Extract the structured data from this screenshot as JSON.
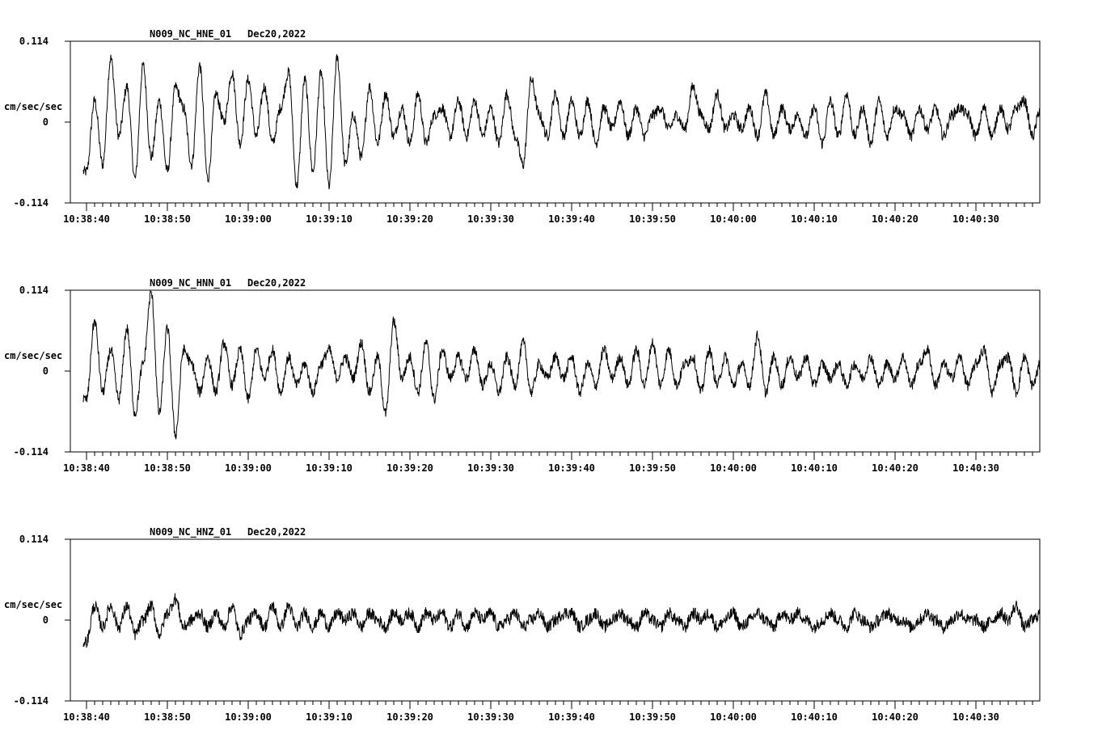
{
  "chart_data": [
    {
      "type": "line",
      "station_label": "N009_NC_HNE_01",
      "date_label": "Dec20,2022",
      "ylabel": "cm/sec/sec",
      "ylim": [
        -0.114,
        0.114
      ],
      "y_ticks": [
        "0.114",
        "0",
        "-0.114"
      ],
      "x_tick_labels": [
        "10:38:40",
        "10:38:50",
        "10:39:00",
        "10:39:10",
        "10:39:20",
        "10:39:30",
        "10:39:40",
        "10:39:50",
        "10:40:00",
        "10:40:10",
        "10:40:20",
        "10:40:30"
      ],
      "series": [
        {
          "color": "#000000",
          "t": [
            0,
            1,
            2,
            3,
            4,
            5,
            6,
            7,
            8,
            9,
            10,
            11,
            12,
            13,
            14,
            15,
            16,
            17,
            18,
            19,
            20,
            21,
            22,
            23,
            24,
            25,
            26,
            27,
            28,
            29,
            30,
            31,
            32,
            33,
            34,
            35,
            36,
            37,
            38,
            39,
            40,
            41,
            42,
            43,
            44,
            45,
            46,
            47,
            48,
            49,
            50,
            51,
            52,
            53,
            54,
            55,
            56,
            57,
            58,
            59,
            60,
            61,
            62,
            63,
            64,
            65,
            66,
            67,
            68,
            69,
            70,
            71,
            72,
            73,
            74,
            75,
            76,
            77,
            78,
            79,
            80,
            81,
            82,
            83,
            84,
            85,
            86,
            87,
            88,
            89,
            90,
            91,
            92,
            93,
            94,
            95,
            96,
            97,
            98,
            99,
            100,
            101,
            102,
            103,
            104,
            105,
            106,
            107,
            108,
            109,
            110,
            111,
            112,
            113,
            114,
            115,
            116,
            117,
            118,
            119
          ],
          "values": [
            -0.07,
            0.03,
            -0.06,
            0.09,
            -0.02,
            0.05,
            -0.08,
            0.08,
            -0.05,
            0.03,
            -0.07,
            0.05,
            0.02,
            -0.06,
            0.08,
            -0.08,
            0.04,
            0.0,
            0.07,
            -0.03,
            0.06,
            -0.02,
            0.05,
            -0.03,
            0.02,
            0.07,
            -0.09,
            0.06,
            -0.07,
            0.07,
            -0.09,
            0.09,
            -0.06,
            0.01,
            -0.05,
            0.05,
            -0.03,
            0.04,
            -0.02,
            0.02,
            -0.03,
            0.04,
            -0.03,
            0.01,
            0.02,
            -0.02,
            0.03,
            -0.02,
            0.03,
            -0.02,
            0.02,
            -0.03,
            0.04,
            -0.02,
            -0.06,
            0.06,
            0.01,
            -0.02,
            0.04,
            -0.02,
            0.03,
            -0.02,
            0.03,
            -0.03,
            0.02,
            -0.01,
            0.03,
            -0.02,
            0.02,
            -0.02,
            0.01,
            0.02,
            -0.01,
            0.01,
            -0.01,
            0.05,
            0.01,
            -0.01,
            0.04,
            -0.01,
            0.01,
            -0.01,
            0.02,
            -0.02,
            0.04,
            -0.02,
            0.02,
            -0.01,
            0.01,
            -0.02,
            0.02,
            -0.03,
            0.03,
            -0.02,
            0.04,
            -0.02,
            0.02,
            -0.03,
            0.03,
            -0.02,
            0.02,
            0.01,
            -0.02,
            0.02,
            -0.01,
            0.02,
            -0.02,
            0.01,
            0.02,
            0.01,
            -0.02,
            0.02,
            -0.02,
            0.02,
            -0.01,
            0.02,
            0.03,
            -0.02,
            0.02,
            -0.01
          ],
          "noise": 0.008
        }
      ],
      "t_start_label": "10:38:40"
    },
    {
      "type": "line",
      "station_label": "N009_NC_HNN_01",
      "date_label": "Dec20,2022",
      "ylabel": "cm/sec/sec",
      "ylim": [
        -0.114,
        0.114
      ],
      "y_ticks": [
        "0.114",
        "0",
        "-0.114"
      ],
      "x_tick_labels": [
        "10:38:40",
        "10:38:50",
        "10:39:00",
        "10:39:10",
        "10:39:20",
        "10:39:30",
        "10:39:40",
        "10:39:50",
        "10:40:00",
        "10:40:10",
        "10:40:20",
        "10:40:30"
      ],
      "series": [
        {
          "color": "#000000",
          "t": [
            0,
            1,
            2,
            3,
            4,
            5,
            6,
            7,
            8,
            9,
            10,
            11,
            12,
            13,
            14,
            15,
            16,
            17,
            18,
            19,
            20,
            21,
            22,
            23,
            24,
            25,
            26,
            27,
            28,
            29,
            30,
            31,
            32,
            33,
            34,
            35,
            36,
            37,
            38,
            39,
            40,
            41,
            42,
            43,
            44,
            45,
            46,
            47,
            48,
            49,
            50,
            51,
            52,
            53,
            54,
            55,
            56,
            57,
            58,
            59,
            60,
            61,
            62,
            63,
            64,
            65,
            66,
            67,
            68,
            69,
            70,
            71,
            72,
            73,
            74,
            75,
            76,
            77,
            78,
            79,
            80,
            81,
            82,
            83,
            84,
            85,
            86,
            87,
            88,
            89,
            90,
            91,
            92,
            93,
            94,
            95,
            96,
            97,
            98,
            99,
            100,
            101,
            102,
            103,
            104,
            105,
            106,
            107,
            108,
            109,
            110,
            111,
            112,
            113,
            114,
            115,
            116,
            117,
            118,
            119
          ],
          "values": [
            -0.04,
            0.07,
            -0.03,
            0.03,
            -0.04,
            0.06,
            -0.06,
            0.01,
            0.11,
            -0.06,
            0.06,
            -0.09,
            0.03,
            0.01,
            -0.03,
            0.02,
            -0.03,
            0.04,
            -0.02,
            0.03,
            -0.04,
            0.03,
            -0.01,
            0.03,
            -0.03,
            0.02,
            -0.02,
            0.01,
            -0.03,
            0.01,
            0.03,
            -0.01,
            0.02,
            -0.01,
            0.04,
            -0.03,
            0.02,
            -0.06,
            0.07,
            -0.01,
            0.02,
            -0.03,
            0.04,
            -0.04,
            0.03,
            -0.01,
            0.02,
            -0.01,
            0.03,
            -0.02,
            0.01,
            -0.03,
            0.02,
            -0.02,
            0.04,
            -0.03,
            0.01,
            -0.01,
            0.02,
            -0.01,
            0.02,
            -0.03,
            0.01,
            -0.02,
            0.03,
            -0.01,
            0.02,
            -0.02,
            0.03,
            -0.02,
            0.04,
            -0.02,
            0.03,
            -0.02,
            0.01,
            0.02,
            -0.03,
            0.03,
            -0.02,
            0.02,
            -0.02,
            0.01,
            -0.02,
            0.05,
            -0.03,
            0.02,
            -0.02,
            0.02,
            -0.01,
            0.02,
            -0.02,
            0.01,
            -0.01,
            0.01,
            -0.02,
            0.01,
            -0.01,
            0.02,
            -0.02,
            0.01,
            -0.01,
            0.02,
            -0.02,
            0.01,
            0.03,
            -0.02,
            0.01,
            -0.01,
            0.02,
            -0.02,
            0.01,
            0.03,
            -0.03,
            0.01,
            0.02,
            -0.03,
            0.02,
            -0.02,
            0.01,
            -0.02
          ],
          "noise": 0.008
        }
      ]
    },
    {
      "type": "line",
      "station_label": "N009_NC_HNZ_01",
      "date_label": "Dec20,2022",
      "ylabel": "cm/sec/sec",
      "ylim": [
        -0.114,
        0.114
      ],
      "y_ticks": [
        "0.114",
        "0",
        "-0.114"
      ],
      "x_tick_labels": [
        "10:38:40",
        "10:38:50",
        "10:39:00",
        "10:39:10",
        "10:39:20",
        "10:39:30",
        "10:39:40",
        "10:39:50",
        "10:40:00",
        "10:40:10",
        "10:40:20",
        "10:40:30"
      ],
      "series": [
        {
          "color": "#000000",
          "t": [
            0,
            1,
            2,
            3,
            4,
            5,
            6,
            7,
            8,
            9,
            10,
            11,
            12,
            13,
            14,
            15,
            16,
            17,
            18,
            19,
            20,
            21,
            22,
            23,
            24,
            25,
            26,
            27,
            28,
            29,
            30,
            31,
            32,
            33,
            34,
            35,
            36,
            37,
            38,
            39,
            40,
            41,
            42,
            43,
            44,
            45,
            46,
            47,
            48,
            49,
            50,
            51,
            52,
            53,
            54,
            55,
            56,
            57,
            58,
            59,
            60,
            61,
            62,
            63,
            64,
            65,
            66,
            67,
            68,
            69,
            70,
            71,
            72,
            73,
            74,
            75,
            76,
            77,
            78,
            79,
            80,
            81,
            82,
            83,
            84,
            85,
            86,
            87,
            88,
            89,
            90,
            91,
            92,
            93,
            94,
            95,
            96,
            97,
            98,
            99,
            100,
            101,
            102,
            103,
            104,
            105,
            106,
            107,
            108,
            109,
            110,
            111,
            112,
            113,
            114,
            115,
            116,
            117,
            118,
            119
          ],
          "values": [
            -0.03,
            0.02,
            -0.01,
            0.02,
            -0.01,
            0.02,
            -0.02,
            0.0,
            0.02,
            -0.02,
            0.01,
            0.03,
            -0.01,
            0.0,
            0.01,
            -0.01,
            0.01,
            -0.01,
            0.02,
            -0.02,
            0.0,
            0.01,
            -0.01,
            0.02,
            -0.01,
            0.02,
            -0.01,
            0.01,
            -0.01,
            0.01,
            -0.01,
            0.01,
            0.0,
            0.01,
            -0.01,
            0.01,
            0.0,
            -0.01,
            0.01,
            0.0,
            0.01,
            -0.01,
            0.01,
            0.0,
            0.01,
            -0.01,
            0.01,
            -0.01,
            0.01,
            0.0,
            0.01,
            -0.01,
            0.0,
            0.01,
            -0.01,
            0.0,
            0.01,
            -0.01,
            0.0,
            0.01,
            0.01,
            -0.01,
            0.0,
            0.01,
            -0.01,
            0.0,
            0.01,
            0.0,
            -0.01,
            0.01,
            0.0,
            -0.01,
            0.01,
            0.0,
            -0.01,
            0.01,
            0.0,
            0.01,
            -0.01,
            0.0,
            0.01,
            -0.01,
            0.0,
            0.01,
            0.0,
            -0.01,
            0.01,
            0.0,
            0.01,
            0.0,
            -0.01,
            0.0,
            0.01,
            0.0,
            -0.01,
            0.01,
            0.0,
            -0.01,
            0.0,
            0.01,
            0.0,
            0.0,
            -0.01,
            0.0,
            0.01,
            0.0,
            -0.01,
            0.0,
            0.01,
            0.0,
            0.0,
            -0.01,
            0.0,
            0.01,
            0.0,
            0.02,
            -0.01,
            0.0,
            0.01,
            -0.01
          ],
          "noise": 0.009
        }
      ]
    }
  ]
}
